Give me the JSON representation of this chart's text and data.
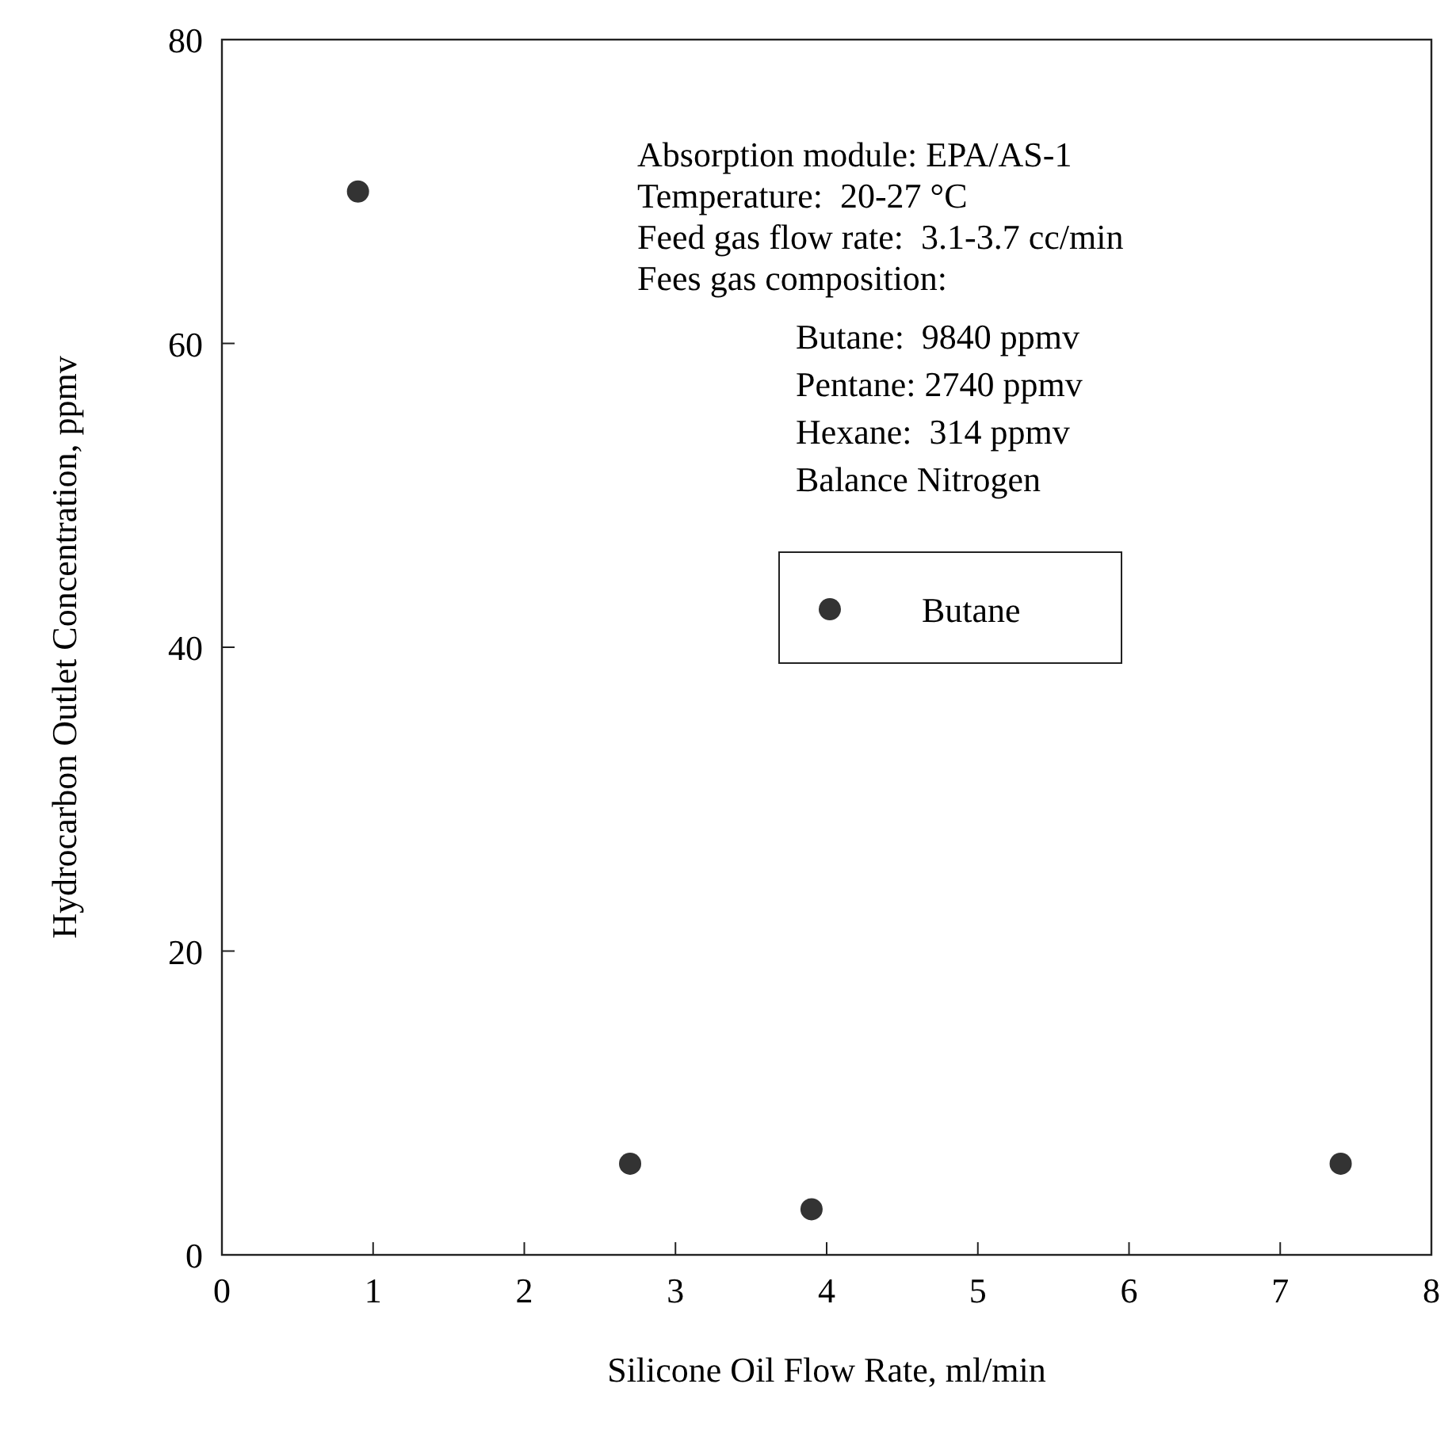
{
  "chart_data": {
    "type": "scatter",
    "xlabel": "Silicone Oil Flow Rate, ml/min",
    "ylabel": "Hydrocarbon Outlet Concentration, ppmv",
    "x": [
      0.9,
      2.7,
      3.9,
      7.4
    ],
    "series": [
      {
        "name": "Butane",
        "color": "#333333",
        "values": [
          70,
          6,
          3,
          6
        ]
      }
    ],
    "xlim": [
      0,
      8
    ],
    "ylim": [
      0,
      80
    ],
    "xticks": [
      0,
      1,
      2,
      3,
      4,
      5,
      6,
      7,
      8
    ],
    "yticks": [
      0,
      20,
      40,
      60,
      80
    ],
    "marker": "circle",
    "legend": "center",
    "grid": false,
    "annotations": [
      "Absorption module: EPA/AS-1",
      "Temperature:  20-27 °C",
      "Feed gas flow rate:  3.1-3.7 cc/min",
      "Fees gas composition:",
      "Butane:  9840 ppmv",
      "Pentane: 2740 ppmv",
      "Hexane:  314 ppmv",
      "Balance Nitrogen"
    ]
  }
}
